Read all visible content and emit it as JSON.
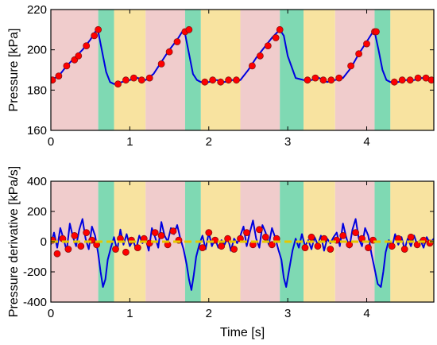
{
  "chart_data": [
    {
      "type": "line",
      "xlabel": "",
      "ylabel": "Pressure [kPa]",
      "xlim": [
        0,
        4.85
      ],
      "ylim": [
        160,
        220
      ],
      "xticks": [
        "0",
        "1",
        "2",
        "3",
        "4"
      ],
      "yticks": [
        "160",
        "180",
        "200",
        "220"
      ],
      "background_bands": [
        {
          "start": 0.0,
          "end": 0.6,
          "color": "#f0cccc"
        },
        {
          "start": 0.6,
          "end": 0.8,
          "color": "#7fd9b3"
        },
        {
          "start": 0.8,
          "end": 1.2,
          "color": "#f8e3a0"
        },
        {
          "start": 1.2,
          "end": 1.7,
          "color": "#f0cccc"
        },
        {
          "start": 1.7,
          "end": 1.9,
          "color": "#7fd9b3"
        },
        {
          "start": 1.9,
          "end": 2.4,
          "color": "#f8e3a0"
        },
        {
          "start": 2.4,
          "end": 2.9,
          "color": "#f0cccc"
        },
        {
          "start": 2.9,
          "end": 3.2,
          "color": "#7fd9b3"
        },
        {
          "start": 3.2,
          "end": 3.6,
          "color": "#f8e3a0"
        },
        {
          "start": 3.6,
          "end": 4.1,
          "color": "#f0cccc"
        },
        {
          "start": 4.1,
          "end": 4.3,
          "color": "#7fd9b3"
        },
        {
          "start": 4.3,
          "end": 4.85,
          "color": "#f8e3a0"
        }
      ],
      "series": [
        {
          "style": "line",
          "color": "#0000e0",
          "x": [
            0.0,
            0.1,
            0.2,
            0.3,
            0.4,
            0.5,
            0.58,
            0.6,
            0.65,
            0.7,
            0.75,
            0.8,
            0.9,
            1.0,
            1.1,
            1.2,
            1.3,
            1.4,
            1.5,
            1.6,
            1.68,
            1.7,
            1.75,
            1.8,
            1.85,
            1.9,
            2.0,
            2.1,
            2.2,
            2.3,
            2.4,
            2.5,
            2.6,
            2.7,
            2.8,
            2.9,
            2.95,
            3.0,
            3.1,
            3.2,
            3.3,
            3.4,
            3.5,
            3.6,
            3.7,
            3.8,
            3.9,
            4.0,
            4.08,
            4.1,
            4.15,
            4.2,
            4.25,
            4.3,
            4.4,
            4.5,
            4.6,
            4.7,
            4.85
          ],
          "y": [
            185,
            187,
            192,
            196,
            200,
            205,
            210,
            209,
            199,
            189,
            184,
            183,
            184,
            185,
            186,
            185,
            188,
            194,
            200,
            205,
            210,
            208,
            198,
            188,
            185,
            184,
            184,
            185,
            184,
            185,
            185,
            190,
            196,
            201,
            206,
            210,
            207,
            197,
            186,
            185,
            185,
            186,
            184,
            185,
            186,
            191,
            198,
            204,
            209,
            209,
            200,
            190,
            185,
            184,
            184,
            185,
            185,
            186,
            185
          ]
        },
        {
          "style": "markers",
          "color": "#ff0000",
          "x": [
            0.02,
            0.1,
            0.2,
            0.3,
            0.35,
            0.45,
            0.55,
            0.6,
            0.85,
            0.95,
            1.05,
            1.15,
            1.25,
            1.4,
            1.5,
            1.6,
            1.7,
            1.75,
            1.95,
            2.05,
            2.15,
            2.25,
            2.35,
            2.55,
            2.65,
            2.75,
            2.85,
            2.9,
            3.25,
            3.35,
            3.45,
            3.55,
            3.65,
            3.8,
            3.9,
            4.0,
            4.1,
            4.12,
            4.35,
            4.45,
            4.55,
            4.65,
            4.75,
            4.82
          ],
          "y": [
            185,
            187,
            192,
            195,
            197,
            202,
            207,
            210,
            183,
            185,
            186,
            185,
            186,
            193,
            199,
            204,
            209,
            210,
            184,
            185,
            184,
            185,
            185,
            192,
            197,
            202,
            206,
            210,
            185,
            186,
            185,
            185,
            186,
            192,
            198,
            203,
            209,
            209,
            184,
            185,
            185,
            186,
            186,
            185
          ]
        }
      ]
    },
    {
      "type": "line",
      "xlabel": "Time [s]",
      "ylabel": "Pressure derivative [kPa/s]",
      "xlim": [
        0,
        4.85
      ],
      "ylim": [
        -400,
        400
      ],
      "xticks": [
        "0",
        "1",
        "2",
        "3",
        "4"
      ],
      "yticks": [
        "-400",
        "-200",
        "0",
        "200",
        "400"
      ],
      "background_bands": [
        {
          "start": 0.0,
          "end": 0.6,
          "color": "#f0cccc"
        },
        {
          "start": 0.6,
          "end": 0.8,
          "color": "#7fd9b3"
        },
        {
          "start": 0.8,
          "end": 1.2,
          "color": "#f8e3a0"
        },
        {
          "start": 1.2,
          "end": 1.7,
          "color": "#f0cccc"
        },
        {
          "start": 1.7,
          "end": 1.9,
          "color": "#7fd9b3"
        },
        {
          "start": 1.9,
          "end": 2.4,
          "color": "#f8e3a0"
        },
        {
          "start": 2.4,
          "end": 2.9,
          "color": "#f0cccc"
        },
        {
          "start": 2.9,
          "end": 3.2,
          "color": "#7fd9b3"
        },
        {
          "start": 3.2,
          "end": 3.6,
          "color": "#f8e3a0"
        },
        {
          "start": 3.6,
          "end": 4.1,
          "color": "#f0cccc"
        },
        {
          "start": 4.1,
          "end": 4.3,
          "color": "#7fd9b3"
        },
        {
          "start": 4.3,
          "end": 4.85,
          "color": "#f8e3a0"
        }
      ],
      "series": [
        {
          "style": "line",
          "color": "#0000e0",
          "x": [
            0.0,
            0.04,
            0.08,
            0.12,
            0.16,
            0.2,
            0.24,
            0.28,
            0.32,
            0.36,
            0.4,
            0.44,
            0.48,
            0.52,
            0.56,
            0.6,
            0.63,
            0.66,
            0.69,
            0.72,
            0.76,
            0.8,
            0.84,
            0.88,
            0.92,
            0.96,
            1.0,
            1.04,
            1.08,
            1.12,
            1.16,
            1.2,
            1.24,
            1.28,
            1.32,
            1.36,
            1.4,
            1.44,
            1.48,
            1.52,
            1.56,
            1.6,
            1.64,
            1.68,
            1.72,
            1.75,
            1.78,
            1.81,
            1.84,
            1.88,
            1.92,
            1.96,
            2.0,
            2.04,
            2.08,
            2.12,
            2.16,
            2.2,
            2.24,
            2.28,
            2.32,
            2.36,
            2.4,
            2.44,
            2.48,
            2.52,
            2.56,
            2.6,
            2.64,
            2.68,
            2.72,
            2.76,
            2.8,
            2.84,
            2.88,
            2.92,
            2.95,
            2.98,
            3.02,
            3.06,
            3.1,
            3.14,
            3.18,
            3.22,
            3.26,
            3.3,
            3.34,
            3.38,
            3.42,
            3.46,
            3.5,
            3.54,
            3.58,
            3.62,
            3.66,
            3.7,
            3.74,
            3.78,
            3.82,
            3.86,
            3.9,
            3.94,
            3.98,
            4.02,
            4.06,
            4.1,
            4.14,
            4.18,
            4.21,
            4.24,
            4.28,
            4.32,
            4.36,
            4.4,
            4.44,
            4.48,
            4.52,
            4.56,
            4.6,
            4.64,
            4.68,
            4.72,
            4.76,
            4.8,
            4.85
          ],
          "y": [
            -20,
            60,
            -40,
            90,
            20,
            -60,
            120,
            30,
            -30,
            80,
            150,
            20,
            -50,
            100,
            40,
            -80,
            -200,
            -300,
            -250,
            -120,
            -40,
            30,
            -60,
            80,
            -20,
            50,
            -30,
            10,
            -50,
            40,
            -10,
            20,
            -60,
            90,
            30,
            -40,
            130,
            40,
            0,
            90,
            50,
            110,
            20,
            -50,
            -150,
            -250,
            -320,
            -220,
            -100,
            -20,
            40,
            -50,
            60,
            -30,
            20,
            -40,
            10,
            -20,
            30,
            -60,
            20,
            -10,
            40,
            100,
            -30,
            60,
            140,
            20,
            -40,
            110,
            60,
            -20,
            90,
            30,
            -50,
            -120,
            -240,
            -300,
            -180,
            -60,
            20,
            -40,
            50,
            -30,
            10,
            -50,
            30,
            -20,
            40,
            -60,
            20,
            -10,
            30,
            60,
            -30,
            120,
            30,
            -40,
            80,
            150,
            20,
            -30,
            90,
            40,
            -80,
            -180,
            -280,
            -300,
            -200,
            -70,
            10,
            -40,
            50,
            -20,
            30,
            -50,
            20,
            -30,
            40,
            -20,
            10,
            -40,
            30,
            -10,
            20
          ]
        },
        {
          "style": "markers",
          "color": "#ff0000",
          "x": [
            0.02,
            0.08,
            0.15,
            0.22,
            0.3,
            0.38,
            0.45,
            0.52,
            0.58,
            0.82,
            0.88,
            0.95,
            1.02,
            1.1,
            1.18,
            1.25,
            1.32,
            1.4,
            1.48,
            1.55,
            1.62,
            1.92,
            2.0,
            2.08,
            2.16,
            2.24,
            2.32,
            2.4,
            2.48,
            2.56,
            2.64,
            2.72,
            2.8,
            2.86,
            3.22,
            3.3,
            3.38,
            3.46,
            3.54,
            3.62,
            3.7,
            3.78,
            3.86,
            3.94,
            4.02,
            4.08,
            4.32,
            4.4,
            4.48,
            4.56,
            4.64,
            4.72,
            4.8
          ],
          "y": [
            10,
            -80,
            20,
            -50,
            40,
            -30,
            60,
            10,
            -20,
            -50,
            20,
            -70,
            10,
            -40,
            20,
            -10,
            60,
            40,
            -20,
            70,
            10,
            -40,
            60,
            10,
            -30,
            20,
            -50,
            20,
            60,
            -20,
            80,
            30,
            -20,
            20,
            -40,
            30,
            -30,
            20,
            -50,
            10,
            40,
            -20,
            60,
            20,
            -40,
            10,
            -30,
            20,
            -50,
            30,
            -20,
            10,
            -10
          ]
        },
        {
          "style": "dashed",
          "color": "#e6c800",
          "x": [
            0.0,
            4.85
          ],
          "y": [
            0,
            0
          ]
        }
      ]
    }
  ]
}
